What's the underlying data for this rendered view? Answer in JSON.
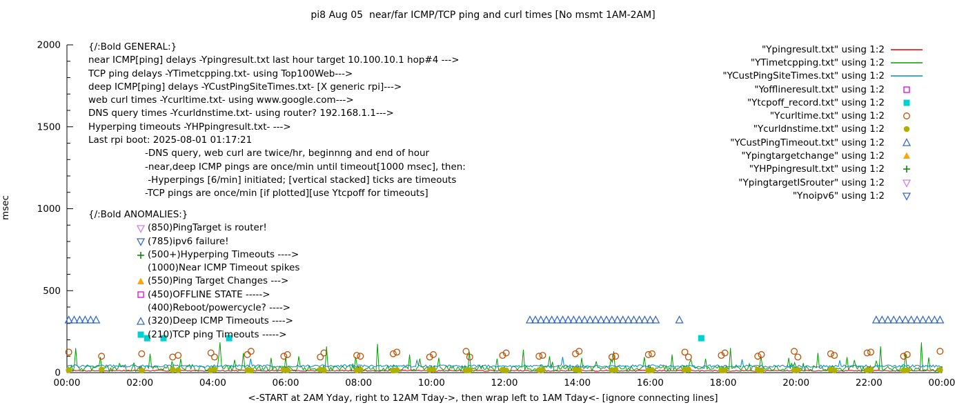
{
  "chart_data": {
    "type": "line+scatter",
    "title": "pi8 Aug 05  near/far ICMP/TCP ping and curl times [No msmt 1AM-2AM]",
    "xlabel": "<-START at 2AM Yday, right to 12AM Tday->, then wrap left to 1AM Tday<- [ignore connecting lines]",
    "ylabel": "msec",
    "x_unit": "time of day (hours)",
    "y_unit": "msec",
    "x_range": [
      0,
      24
    ],
    "y_range": [
      0,
      2000
    ],
    "grid": false,
    "legend_position": "top-right",
    "x_ticks": [
      {
        "pos": 0,
        "label": "00:00"
      },
      {
        "pos": 2,
        "label": "02:00"
      },
      {
        "pos": 4,
        "label": "04:00"
      },
      {
        "pos": 6,
        "label": "06:00"
      },
      {
        "pos": 8,
        "label": "08:00"
      },
      {
        "pos": 10,
        "label": "10:00"
      },
      {
        "pos": 12,
        "label": "12:00"
      },
      {
        "pos": 14,
        "label": "14:00"
      },
      {
        "pos": 16,
        "label": "16:00"
      },
      {
        "pos": 18,
        "label": "18:00"
      },
      {
        "pos": 20,
        "label": "20:00"
      },
      {
        "pos": 22,
        "label": "22:00"
      },
      {
        "pos": 24,
        "label": "00:00"
      }
    ],
    "y_ticks": [
      {
        "pos": 0,
        "label": "0"
      },
      {
        "pos": 500,
        "label": "500"
      },
      {
        "pos": 1000,
        "label": "1000"
      },
      {
        "pos": 1500,
        "label": "1500"
      },
      {
        "pos": 2000,
        "label": "2000"
      }
    ],
    "line_series": [
      {
        "name": "Ypingresult.txt",
        "color": "#dd0000",
        "baseline": 12,
        "noise": 8,
        "seed": 7,
        "bursts": false,
        "spikes": []
      },
      {
        "name": "YTimetcpping.txt",
        "color": "#00a000",
        "baseline": 25,
        "noise": 35,
        "seed": 13,
        "bursts": true,
        "spikes": [
          [
            0.25,
            150
          ],
          [
            0.9,
            95
          ],
          [
            2.3,
            115
          ],
          [
            3.1,
            85
          ],
          [
            4.2,
            185
          ],
          [
            4.85,
            120
          ],
          [
            5.6,
            90
          ],
          [
            6.35,
            100
          ],
          [
            7.1,
            160
          ],
          [
            7.9,
            95
          ],
          [
            8.5,
            175
          ],
          [
            9.4,
            110
          ],
          [
            10.2,
            90
          ],
          [
            11.05,
            125
          ],
          [
            11.8,
            85
          ],
          [
            12.5,
            140
          ],
          [
            13.25,
            100
          ],
          [
            14.1,
            90
          ],
          [
            15.0,
            130
          ],
          [
            15.85,
            95
          ],
          [
            16.6,
            110
          ],
          [
            17.5,
            85
          ],
          [
            18.2,
            150
          ],
          [
            19.05,
            100
          ],
          [
            19.8,
            90
          ],
          [
            20.6,
            120
          ],
          [
            21.4,
            95
          ],
          [
            22.3,
            160
          ],
          [
            23.0,
            115
          ],
          [
            23.45,
            185
          ]
        ]
      },
      {
        "name": "YCustPingSiteTimes.txt",
        "color": "#0088cc",
        "baseline": 40,
        "noise": 16,
        "seed": 29,
        "bursts": false,
        "spikes": [
          [
            5.05,
            85
          ],
          [
            9.6,
            75
          ],
          [
            13.6,
            95
          ],
          [
            18.5,
            80
          ],
          [
            21.2,
            75
          ]
        ]
      }
    ],
    "scatter_series": [
      {
        "name": "Yofflineresult.txt",
        "marker": "square-open",
        "color": "#e000e0",
        "points": []
      },
      {
        "name": "Ytcpoff_record.txt",
        "marker": "square-filled",
        "color": "#00d0d0",
        "points": [
          [
            2.2,
            210
          ],
          [
            2.65,
            210
          ],
          [
            4.45,
            210
          ],
          [
            17.4,
            210
          ]
        ]
      },
      {
        "name": "Ycurltime.txt",
        "marker": "circle-open",
        "color": "#c05000",
        "points": [
          [
            0.05,
            125
          ],
          [
            0.95,
            100
          ],
          [
            2.05,
            115
          ],
          [
            2.9,
            95
          ],
          [
            3.05,
            105
          ],
          [
            3.95,
            120
          ],
          [
            4.05,
            95
          ],
          [
            4.95,
            110
          ],
          [
            5.05,
            130
          ],
          [
            5.95,
            100
          ],
          [
            6.05,
            110
          ],
          [
            6.95,
            95
          ],
          [
            7.05,
            120
          ],
          [
            7.95,
            105
          ],
          [
            8.05,
            100
          ],
          [
            8.95,
            115
          ],
          [
            9.05,
            125
          ],
          [
            9.95,
            95
          ],
          [
            10.05,
            110
          ],
          [
            10.95,
            130
          ],
          [
            11.05,
            95
          ],
          [
            11.95,
            105
          ],
          [
            12.05,
            120
          ],
          [
            12.95,
            100
          ],
          [
            13.05,
            105
          ],
          [
            13.95,
            115
          ],
          [
            14.05,
            130
          ],
          [
            14.95,
            95
          ],
          [
            15.05,
            100
          ],
          [
            15.95,
            110
          ],
          [
            16.05,
            115
          ],
          [
            16.95,
            125
          ],
          [
            17.05,
            95
          ],
          [
            17.95,
            105
          ],
          [
            18.05,
            120
          ],
          [
            18.95,
            100
          ],
          [
            19.05,
            110
          ],
          [
            19.95,
            130
          ],
          [
            20.05,
            95
          ],
          [
            20.95,
            115
          ],
          [
            21.05,
            105
          ],
          [
            21.95,
            120
          ],
          [
            22.05,
            125
          ],
          [
            22.95,
            100
          ],
          [
            23.05,
            110
          ],
          [
            23.95,
            130
          ]
        ]
      },
      {
        "name": "Ycurldnstime.txt",
        "marker": "circle-filled",
        "color": "#b0b000",
        "points": [
          [
            0.05,
            15
          ],
          [
            0.95,
            18
          ],
          [
            2.05,
            13
          ],
          [
            2.9,
            17
          ],
          [
            3.05,
            15
          ],
          [
            3.95,
            14
          ],
          [
            4.05,
            18
          ],
          [
            4.95,
            15
          ],
          [
            5.05,
            13
          ],
          [
            5.95,
            16
          ],
          [
            6.05,
            15
          ],
          [
            6.95,
            18
          ],
          [
            7.05,
            14
          ],
          [
            7.95,
            15
          ],
          [
            8.05,
            17
          ],
          [
            8.95,
            13
          ],
          [
            9.05,
            15
          ],
          [
            9.95,
            16
          ],
          [
            10.05,
            18
          ],
          [
            10.95,
            14
          ],
          [
            11.05,
            15
          ],
          [
            11.95,
            17
          ],
          [
            12.05,
            13
          ],
          [
            12.95,
            15
          ],
          [
            13.05,
            16
          ],
          [
            13.95,
            18
          ],
          [
            14.05,
            14
          ],
          [
            14.95,
            15
          ],
          [
            15.05,
            17
          ],
          [
            15.95,
            13
          ],
          [
            16.05,
            15
          ],
          [
            16.95,
            16
          ],
          [
            17.05,
            18
          ],
          [
            17.95,
            14
          ],
          [
            18.05,
            15
          ],
          [
            18.95,
            17
          ],
          [
            19.05,
            13
          ],
          [
            19.95,
            15
          ],
          [
            20.05,
            16
          ],
          [
            20.95,
            18
          ],
          [
            21.05,
            14
          ],
          [
            21.95,
            15
          ],
          [
            22.05,
            17
          ],
          [
            22.95,
            13
          ],
          [
            23.05,
            15
          ],
          [
            23.95,
            16
          ]
        ]
      },
      {
        "name": "YCustPingTimeout.txt",
        "marker": "triangle-up-open",
        "color": "#3366cc",
        "points": [
          [
            0.05,
            320
          ],
          [
            0.2,
            320
          ],
          [
            0.35,
            320
          ],
          [
            0.5,
            320
          ],
          [
            0.65,
            320
          ],
          [
            0.8,
            320
          ],
          [
            12.7,
            320
          ],
          [
            12.85,
            320
          ],
          [
            13,
            320
          ],
          [
            13.15,
            320
          ],
          [
            13.3,
            320
          ],
          [
            13.45,
            320
          ],
          [
            13.6,
            320
          ],
          [
            13.75,
            320
          ],
          [
            13.9,
            320
          ],
          [
            14.05,
            320
          ],
          [
            14.2,
            320
          ],
          [
            14.35,
            320
          ],
          [
            14.5,
            320
          ],
          [
            14.65,
            320
          ],
          [
            14.8,
            320
          ],
          [
            14.95,
            320
          ],
          [
            15.1,
            320
          ],
          [
            15.25,
            320
          ],
          [
            15.4,
            320
          ],
          [
            15.55,
            320
          ],
          [
            15.7,
            320
          ],
          [
            15.85,
            320
          ],
          [
            16,
            320
          ],
          [
            16.15,
            320
          ],
          [
            16.8,
            320
          ],
          [
            22.2,
            320
          ],
          [
            22.36,
            320
          ],
          [
            22.52,
            320
          ],
          [
            22.68,
            320
          ],
          [
            22.84,
            320
          ],
          [
            23,
            320
          ],
          [
            23.16,
            320
          ],
          [
            23.32,
            320
          ],
          [
            23.48,
            320
          ],
          [
            23.64,
            320
          ],
          [
            23.8,
            320
          ],
          [
            23.95,
            320
          ]
        ]
      },
      {
        "name": "Ypingtargetchange",
        "marker": "triangle-up-filled",
        "color": "#ffa500",
        "points": []
      },
      {
        "name": "YHPpingresult.txt",
        "marker": "plus",
        "color": "#008000",
        "points": []
      },
      {
        "name": "YpingtargetISrouter",
        "marker": "triangle-down-open",
        "color": "#cc80e0",
        "points": []
      },
      {
        "name": "Ynoipv6",
        "marker": "triangle-down-open",
        "color": "#3366cc",
        "points": []
      }
    ]
  },
  "legend": {
    "items": [
      {
        "label": "\"Ypingresult.txt\" using 1:2",
        "sample": "line",
        "color": "#dd0000"
      },
      {
        "label": "\"YTimetcpping.txt\" using 1:2",
        "sample": "line",
        "color": "#00a000"
      },
      {
        "label": "\"YCustPingSiteTimes.txt\" using 1:2",
        "sample": "line",
        "color": "#0088cc"
      },
      {
        "label": "\"Yofflineresult.txt\" using 1:2",
        "sample": "square-open",
        "color": "#e000e0"
      },
      {
        "label": "\"Ytcpoff_record.txt\" using 1:2",
        "sample": "square-filled",
        "color": "#00d0d0"
      },
      {
        "label": "\"Ycurltime.txt\" using 1:2",
        "sample": "circle-open",
        "color": "#c05000"
      },
      {
        "label": "\"Ycurldnstime.txt\" using 1:2",
        "sample": "circle-filled",
        "color": "#b0b000"
      },
      {
        "label": "\"YCustPingTimeout.txt\" using 1:2",
        "sample": "triangle-up-open",
        "color": "#3366cc"
      },
      {
        "label": "\"Ypingtargetchange\" using 1:2",
        "sample": "triangle-up-filled",
        "color": "#ffa500"
      },
      {
        "label": "\"YHPpingresult.txt\" using 1:2",
        "sample": "plus",
        "color": "#008000"
      },
      {
        "label": "\"YpingtargetISrouter\" using 1:2",
        "sample": "triangle-down-open",
        "color": "#cc80e0"
      },
      {
        "label": "\"Ynoipv6\" using 1:2",
        "sample": "triangle-down-open",
        "color": "#3366cc"
      }
    ]
  },
  "general": {
    "heading": "{/:Bold GENERAL:}",
    "lines": [
      "near ICMP[ping] delays -Ypingresult.txt last hour target 10.100.10.1 hop#4 --->",
      "TCP ping delays -YTimetcpping.txt- using Top100Web--->",
      "deep ICMP[ping] delays -YCustPingSiteTimes.txt- [X generic rpi]--->",
      "web curl times -Ycurltime.txt- using www.google.com--->",
      "DNS query times -Ycurldnstime.txt- using router? 192.168.1.1--->",
      "Hyperping timeouts -YHPpingresult.txt- --->",
      "Last rpi boot: 2025-08-01 01:17:21"
    ],
    "notes": [
      "-DNS query, web curl are twice/hr, beginnng and end of hour",
      "-near,deep ICMP pings are once/min until timeout[1000 msec], then:",
      " -Hyperpings [6/min] initiated; [vertical stacked] ticks are timeouts",
      "-TCP pings are once/min [if plotted][use Ytcpoff for timeouts]"
    ]
  },
  "anomalies": {
    "heading": "{/:Bold ANOMALIES:}",
    "items": [
      {
        "marker": "triangle-down-open",
        "color": "#cc80e0",
        "text": "(850)PingTarget is router!"
      },
      {
        "marker": "triangle-down-open",
        "color": "#3366cc",
        "text": "(785)ipv6 failure!"
      },
      {
        "marker": "plus",
        "color": "#008000",
        "text": "(500+)Hyperping Timeouts ---->"
      },
      {
        "marker": "none",
        "color": "",
        "text": "(1000)Near ICMP Timeout spikes"
      },
      {
        "marker": "triangle-up-filled",
        "color": "#ffa500",
        "text": "(550)Ping Target Changes --->"
      },
      {
        "marker": "square-open",
        "color": "#e000e0",
        "text": "(450)OFFLINE STATE ----->"
      },
      {
        "marker": "none",
        "color": "",
        "text": "(400)Reboot/powercycle? ---->"
      },
      {
        "marker": "triangle-up-open",
        "color": "#3366cc",
        "text": "(320)Deep ICMP Timeouts ---->"
      },
      {
        "marker": "square-filled",
        "color": "#00d0d0",
        "text": "(210)TCP ping Timeouts ----->"
      }
    ]
  }
}
